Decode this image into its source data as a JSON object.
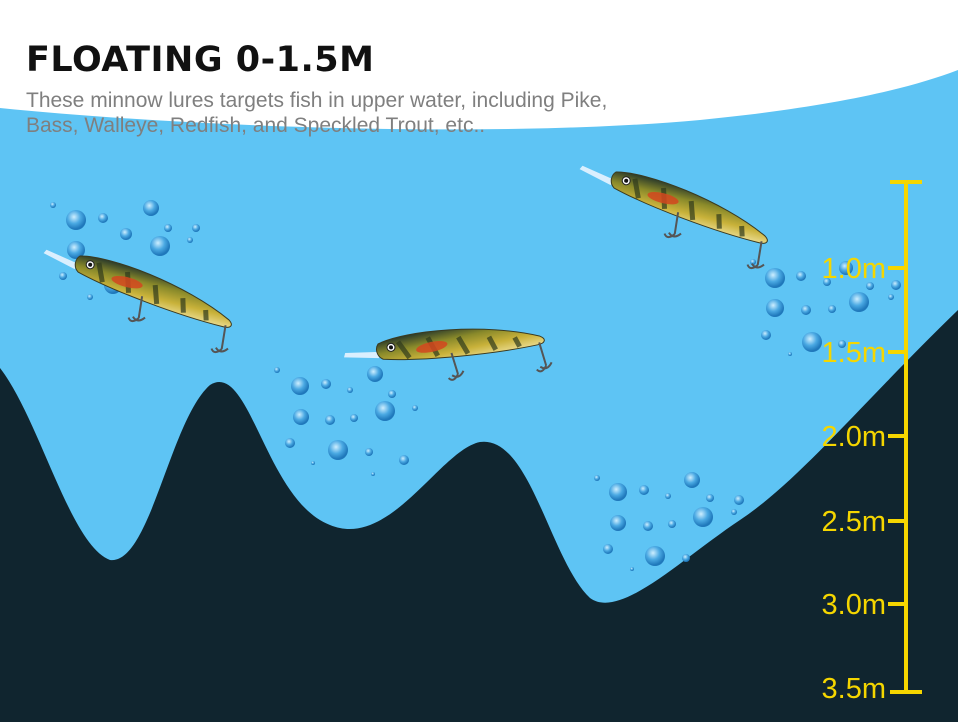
{
  "heading": {
    "title": "FLOATING 0-1.5M",
    "description_line1": "These minnow lures targets fish in upper water, including Pike,",
    "description_line2": "Bass, Walleye, Redfish, and Speckled Trout, etc.."
  },
  "depth_scale": {
    "labels": [
      "1.0m",
      "1.5m",
      "2.0m",
      "2.5m",
      "3.0m",
      "3.5m"
    ],
    "color": "#f5d600"
  },
  "colors": {
    "water": "#5ec4f4",
    "seabed": "#10252f",
    "bubble": "#2f8fd0"
  }
}
